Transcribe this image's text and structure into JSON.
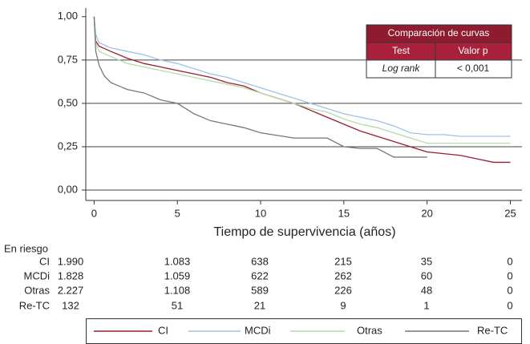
{
  "chart_data": {
    "type": "line",
    "x_label": "Tiempo de supervivencia (años)",
    "xlim": [
      -0.5,
      25.7
    ],
    "ylim": [
      -0.06,
      1.05
    ],
    "xticks": [
      0,
      5,
      10,
      15,
      20,
      25
    ],
    "yticks": [
      {
        "value": 0,
        "label": "0,00"
      },
      {
        "value": 0.25,
        "label": "0,25"
      },
      {
        "value": 0.5,
        "label": "0,50"
      },
      {
        "value": 0.75,
        "label": "0,75"
      },
      {
        "value": 1,
        "label": "1,00"
      }
    ],
    "grid": true,
    "series": [
      {
        "name": "CI",
        "color": "#9b1b30",
        "x": [
          0,
          0.1,
          0.3,
          1,
          2,
          3,
          4,
          5,
          6,
          7,
          8,
          9,
          10,
          11,
          12,
          13,
          14,
          15,
          16,
          17,
          18,
          19,
          20,
          21,
          22,
          23,
          24,
          25
        ],
        "values": [
          1,
          0.86,
          0.83,
          0.8,
          0.76,
          0.73,
          0.71,
          0.69,
          0.67,
          0.65,
          0.62,
          0.6,
          0.56,
          0.53,
          0.5,
          0.46,
          0.42,
          0.38,
          0.34,
          0.31,
          0.28,
          0.25,
          0.22,
          0.21,
          0.2,
          0.18,
          0.16,
          0.16
        ]
      },
      {
        "name": "MCDi",
        "color": "#9dc3e6",
        "x": [
          0,
          0.1,
          0.3,
          1,
          2,
          3,
          4,
          5,
          6,
          7,
          8,
          9,
          10,
          11,
          12,
          13,
          14,
          15,
          16,
          17,
          18,
          19,
          20,
          21,
          22,
          23,
          24,
          25
        ],
        "values": [
          1,
          0.9,
          0.85,
          0.82,
          0.8,
          0.78,
          0.75,
          0.73,
          0.7,
          0.67,
          0.65,
          0.62,
          0.59,
          0.56,
          0.53,
          0.5,
          0.47,
          0.44,
          0.42,
          0.4,
          0.37,
          0.33,
          0.32,
          0.32,
          0.31,
          0.31,
          0.31,
          0.31
        ]
      },
      {
        "name": "Otras",
        "color": "#b5dba8",
        "x": [
          0,
          0.1,
          0.3,
          1,
          2,
          3,
          4,
          5,
          6,
          7,
          8,
          9,
          10,
          11,
          12,
          13,
          14,
          15,
          16,
          17,
          18,
          19,
          20,
          21,
          22,
          23,
          24,
          25
        ],
        "values": [
          1,
          0.85,
          0.8,
          0.77,
          0.73,
          0.71,
          0.69,
          0.67,
          0.65,
          0.63,
          0.61,
          0.59,
          0.56,
          0.53,
          0.5,
          0.47,
          0.45,
          0.41,
          0.38,
          0.36,
          0.33,
          0.3,
          0.27,
          0.27,
          0.27,
          0.27,
          0.27,
          0.27
        ]
      },
      {
        "name": "Re-TC",
        "color": "#777777",
        "x": [
          0,
          0.1,
          0.3,
          0.6,
          1,
          1.5,
          2,
          3,
          4,
          5,
          6,
          7,
          8,
          9,
          10,
          12,
          13,
          14,
          15,
          16,
          17,
          18,
          19,
          20
        ],
        "values": [
          1,
          0.8,
          0.72,
          0.66,
          0.62,
          0.6,
          0.58,
          0.56,
          0.52,
          0.5,
          0.44,
          0.4,
          0.38,
          0.36,
          0.33,
          0.3,
          0.3,
          0.3,
          0.25,
          0.24,
          0.24,
          0.19,
          0.19,
          0.19
        ]
      }
    ],
    "comparison_table": {
      "title": "Comparación de curvas",
      "header": [
        "Test",
        "Valor p"
      ],
      "row": [
        "Log rank",
        "< 0,001"
      ]
    },
    "risk_table": {
      "title": "En riesgo",
      "rows": [
        {
          "label": "CI",
          "values": [
            "1.990",
            "1.083",
            "638",
            "215",
            "35",
            "0"
          ]
        },
        {
          "label": "MCDi",
          "values": [
            "1.828",
            "1.059",
            "622",
            "262",
            "60",
            "0"
          ]
        },
        {
          "label": "Otras",
          "values": [
            "2.227",
            "1.108",
            "589",
            "226",
            "48",
            "0"
          ]
        },
        {
          "label": "Re-TC",
          "values": [
            "132",
            "51",
            "21",
            "9",
            "1",
            "0"
          ]
        }
      ]
    }
  }
}
